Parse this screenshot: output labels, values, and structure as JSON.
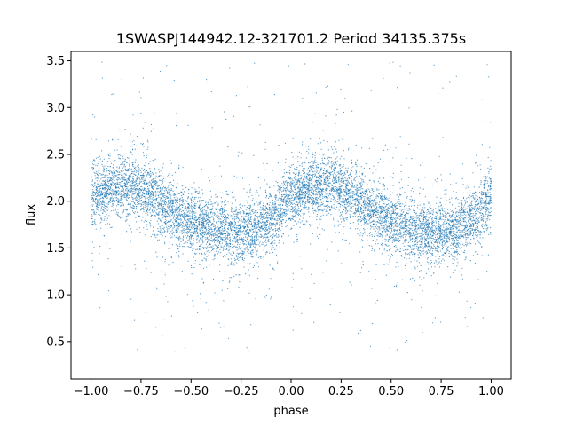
{
  "chart_data": {
    "type": "scatter",
    "title": "1SWASPJ144942.12-321701.2 Period 34135.375s",
    "xlabel": "phase",
    "ylabel": "flux",
    "xlim": [
      -1.1,
      1.1
    ],
    "ylim": [
      0.1,
      3.6
    ],
    "xticks": [
      -1.0,
      -0.75,
      -0.5,
      -0.25,
      0.0,
      0.25,
      0.5,
      0.75,
      1.0
    ],
    "xtick_labels": [
      "−1.00",
      "−0.75",
      "−0.50",
      "−0.25",
      "0.00",
      "0.25",
      "0.50",
      "0.75",
      "1.00"
    ],
    "yticks": [
      0.5,
      1.0,
      1.5,
      2.0,
      2.5,
      3.0,
      3.5
    ],
    "ytick_labels": [
      "0.5",
      "1.0",
      "1.5",
      "2.0",
      "2.5",
      "3.0",
      "3.5"
    ],
    "grid": false,
    "legend": "none",
    "marker_color": "#1f77b4",
    "series": [
      {
        "points_description": "Dense phase-folded light curve, phase range -1.0 to 1.0, sinusoidal with period 1 in phase",
        "curve_points": [
          [
            -1.0,
            2.05
          ],
          [
            -0.9,
            2.14
          ],
          [
            -0.8,
            2.17
          ],
          [
            -0.7,
            2.07
          ],
          [
            -0.6,
            1.9
          ],
          [
            -0.5,
            1.77
          ],
          [
            -0.4,
            1.7
          ],
          [
            -0.3,
            1.67
          ],
          [
            -0.2,
            1.69
          ],
          [
            -0.1,
            1.8
          ],
          [
            0.0,
            2.05
          ],
          [
            0.1,
            2.14
          ],
          [
            0.2,
            2.17
          ],
          [
            0.3,
            2.07
          ],
          [
            0.4,
            1.9
          ],
          [
            0.5,
            1.77
          ],
          [
            0.6,
            1.7
          ],
          [
            0.7,
            1.67
          ],
          [
            0.8,
            1.69
          ],
          [
            0.9,
            1.8
          ],
          [
            1.0,
            2.05
          ]
        ]
      }
    ]
  }
}
